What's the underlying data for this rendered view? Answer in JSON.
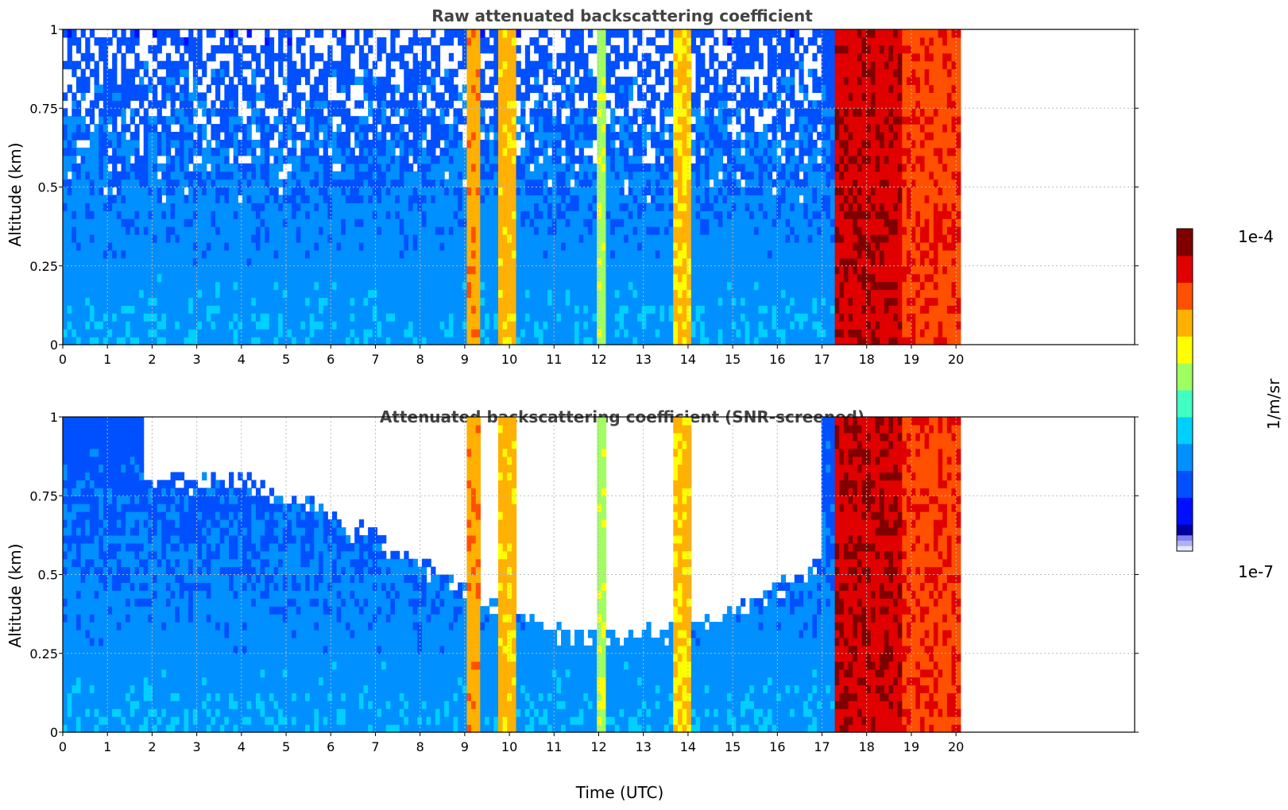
{
  "colors": {
    "grid": "#bbbbbb",
    "axis": "#000000",
    "title": "#444444",
    "colormap": [
      "#0000a0",
      "#0010ff",
      "#0050ff",
      "#0090ff",
      "#00d0ff",
      "#40ffc0",
      "#a0ff60",
      "#ffff00",
      "#ffb000",
      "#ff5000",
      "#e00000",
      "#800000"
    ]
  },
  "colorbar": {
    "label": "1/m/sr",
    "max_label": "1e-4",
    "min_label": "1e-7",
    "scale": "log",
    "colormap": "jet"
  },
  "chart_data": [
    {
      "type": "heatmap",
      "title": "Raw attenuated backscattering coefficient",
      "xlabel": "",
      "ylabel": "Altitude (km)",
      "xlim": [
        0,
        24
      ],
      "ylim": [
        0,
        1
      ],
      "xticks": [
        "0",
        "1",
        "2",
        "3",
        "4",
        "5",
        "6",
        "7",
        "8",
        "9",
        "10",
        "11",
        "12",
        "13",
        "14",
        "15",
        "16",
        "17",
        "18",
        "19",
        "20"
      ],
      "yticks": [
        "0",
        "0.25",
        "0.5",
        "0.75",
        "1"
      ],
      "grid": true,
      "data_extent_hours": [
        0,
        20.1
      ],
      "screened": false
    },
    {
      "type": "heatmap",
      "title": "Attenuated backscattering coefficient (SNR-screened)",
      "xlabel": "Time (UTC)",
      "ylabel": "Altitude (km)",
      "xlim": [
        0,
        24
      ],
      "ylim": [
        0,
        1
      ],
      "xticks": [
        "0",
        "1",
        "2",
        "3",
        "4",
        "5",
        "6",
        "7",
        "8",
        "9",
        "10",
        "11",
        "12",
        "13",
        "14",
        "15",
        "16",
        "17",
        "18",
        "19",
        "20"
      ],
      "yticks": [
        "0",
        "0.25",
        "0.5",
        "0.75",
        "1"
      ],
      "grid": true,
      "data_extent_hours": [
        0,
        20.1
      ],
      "screened": true
    }
  ]
}
